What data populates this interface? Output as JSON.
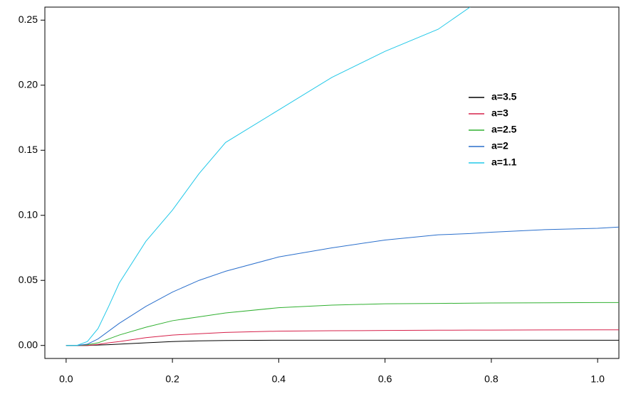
{
  "chart_data": {
    "type": "line",
    "x": [
      0,
      0.02,
      0.04,
      0.06,
      0.08,
      0.1,
      0.15,
      0.2,
      0.25,
      0.3,
      0.4,
      0.5,
      0.6,
      0.7,
      0.76,
      0.8,
      0.9,
      1.0,
      1.04
    ],
    "series": [
      {
        "name": "a=3.5",
        "color": "#000000",
        "values": [
          0,
          0,
          0,
          0.0003,
          0.0006,
          0.001,
          0.002,
          0.003,
          0.0035,
          0.0038,
          0.004,
          0.004,
          0.004,
          0.004,
          0.004,
          0.004,
          0.004,
          0.004,
          0.004
        ]
      },
      {
        "name": "a=3",
        "color": "#d6204a",
        "values": [
          0,
          0,
          0,
          0.0008,
          0.002,
          0.003,
          0.006,
          0.008,
          0.009,
          0.01,
          0.011,
          0.0113,
          0.0115,
          0.0117,
          0.0118,
          0.0118,
          0.0119,
          0.012,
          0.012
        ]
      },
      {
        "name": "a=2.5",
        "color": "#30b030",
        "values": [
          0,
          0,
          0.0005,
          0.002,
          0.005,
          0.008,
          0.014,
          0.019,
          0.022,
          0.025,
          0.029,
          0.031,
          0.032,
          0.0323,
          0.0325,
          0.0326,
          0.0328,
          0.033,
          0.033
        ]
      },
      {
        "name": "a=2",
        "color": "#2a6fcc",
        "values": [
          0,
          0,
          0.001,
          0.005,
          0.011,
          0.017,
          0.03,
          0.041,
          0.05,
          0.057,
          0.068,
          0.075,
          0.081,
          0.085,
          0.086,
          0.087,
          0.089,
          0.09,
          0.091
        ]
      },
      {
        "name": "a=1.1",
        "color": "#22c8e8",
        "values": [
          0,
          0,
          0.003,
          0.013,
          0.03,
          0.048,
          0.08,
          0.104,
          0.132,
          0.156,
          0.181,
          0.206,
          0.226,
          0.243,
          0.26,
          null,
          null,
          null,
          null
        ]
      }
    ],
    "xlim": [
      -0.04,
      1.04
    ],
    "ylim": [
      -0.01,
      0.26
    ],
    "xticks": [
      {
        "value": 0,
        "label": "0.0"
      },
      0.2,
      0.4,
      0.6,
      0.8,
      {
        "value": 1,
        "label": "1.0"
      }
    ],
    "yticks": [
      {
        "value": 0,
        "label": "0.00"
      },
      0.05,
      {
        "value": 0.1,
        "label": "0.10"
      },
      0.15,
      {
        "value": 0.2,
        "label": "0.20"
      },
      0.25
    ],
    "legend": "right"
  }
}
